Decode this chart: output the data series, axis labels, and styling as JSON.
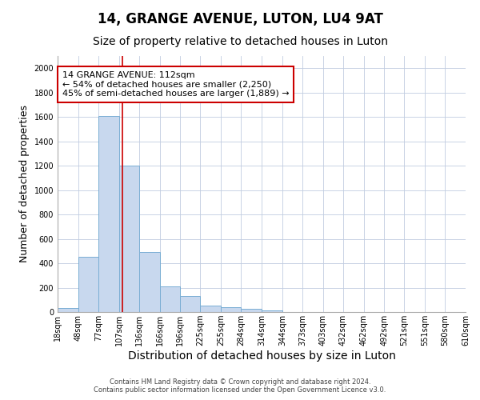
{
  "title": "14, GRANGE AVENUE, LUTON, LU4 9AT",
  "subtitle": "Size of property relative to detached houses in Luton",
  "xlabel": "Distribution of detached houses by size in Luton",
  "ylabel": "Number of detached properties",
  "footer_line1": "Contains HM Land Registry data © Crown copyright and database right 2024.",
  "footer_line2": "Contains public sector information licensed under the Open Government Licence v3.0.",
  "bin_labels": [
    "18sqm",
    "48sqm",
    "77sqm",
    "107sqm",
    "136sqm",
    "166sqm",
    "196sqm",
    "225sqm",
    "255sqm",
    "284sqm",
    "314sqm",
    "344sqm",
    "373sqm",
    "403sqm",
    "432sqm",
    "462sqm",
    "492sqm",
    "521sqm",
    "551sqm",
    "580sqm",
    "610sqm"
  ],
  "bin_edges": [
    18,
    48,
    77,
    107,
    136,
    166,
    196,
    225,
    255,
    284,
    314,
    344,
    373,
    403,
    432,
    462,
    492,
    521,
    551,
    580,
    610
  ],
  "bar_values": [
    35,
    455,
    1610,
    1200,
    490,
    210,
    130,
    50,
    40,
    25,
    15,
    0,
    0,
    0,
    0,
    0,
    0,
    0,
    0,
    0
  ],
  "bar_color": "#c8d8ee",
  "bar_edgecolor": "#7aaed4",
  "property_size": 112,
  "vline_color": "#cc0000",
  "annotation_line1": "14 GRANGE AVENUE: 112sqm",
  "annotation_line2": "← 54% of detached houses are smaller (2,250)",
  "annotation_line3": "45% of semi-detached houses are larger (1,889) →",
  "annotation_box_edgecolor": "#cc0000",
  "annotation_box_facecolor": "#ffffff",
  "ylim": [
    0,
    2100
  ],
  "yticks": [
    0,
    200,
    400,
    600,
    800,
    1000,
    1200,
    1400,
    1600,
    1800,
    2000
  ],
  "grid_color": "#c0cce0",
  "bg_color": "#ffffff",
  "title_fontsize": 12,
  "subtitle_fontsize": 10,
  "tick_fontsize": 7,
  "ylabel_fontsize": 9,
  "xlabel_fontsize": 10
}
